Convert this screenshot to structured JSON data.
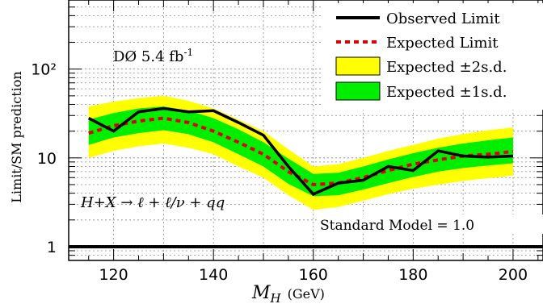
{
  "chart_data": {
    "type": "line",
    "title": "",
    "xlabel": "M_H (GeV)",
    "ylabel": "Limit/SM prediction",
    "xlim": [
      111,
      206
    ],
    "ylim": [
      0.7,
      600
    ],
    "yscale": "log",
    "grid": true,
    "legend_position": "top-right",
    "x": [
      115,
      120,
      125,
      130,
      135,
      140,
      145,
      150,
      155,
      160,
      165,
      170,
      175,
      180,
      185,
      190,
      195,
      200
    ],
    "series": [
      {
        "name": "Observed Limit",
        "style": "solid",
        "color": "#000000",
        "values": [
          28,
          20,
          33,
          36,
          33,
          34,
          25,
          18,
          8,
          3.9,
          5.2,
          5.6,
          8.0,
          7.2,
          12.0,
          10.5,
          10.2,
          10.5
        ]
      },
      {
        "name": "Expected Limit",
        "style": "dashed",
        "color": "#dd0000",
        "values": [
          19,
          23,
          26,
          28,
          25,
          20,
          15,
          11,
          7,
          5.0,
          5.2,
          6.0,
          7.2,
          8.5,
          9.5,
          10.5,
          11.0,
          11.8
        ]
      }
    ],
    "bands": [
      {
        "name": "Expected ±2s.d.",
        "color": "#ffff00",
        "upper": [
          38,
          43,
          47,
          50,
          44,
          36,
          27,
          20,
          12.5,
          8.0,
          8.5,
          10.0,
          12.0,
          14.0,
          16.5,
          18.5,
          20.5,
          22.0
        ],
        "lower": [
          10,
          12,
          13.5,
          14.5,
          13,
          11,
          8,
          6,
          3.8,
          2.6,
          2.8,
          3.3,
          3.9,
          4.5,
          5.0,
          5.5,
          5.9,
          6.3
        ]
      },
      {
        "name": "Expected ±1s.d.",
        "color": "#00ee00",
        "upper": [
          27,
          32,
          36,
          38,
          34,
          28,
          21,
          15,
          9.8,
          6.6,
          6.8,
          8.0,
          9.6,
          11.3,
          13.0,
          14.5,
          15.8,
          17.0
        ],
        "lower": [
          14,
          17,
          19,
          20.5,
          18.5,
          15,
          11,
          8,
          5.1,
          3.7,
          3.8,
          4.4,
          5.2,
          6.1,
          7.0,
          7.7,
          8.2,
          8.7
        ]
      }
    ],
    "reference_line": {
      "label": "Standard Model = 1.0",
      "value": 1.0
    },
    "x_ticks": [
      120,
      140,
      160,
      180,
      200
    ],
    "y_ticks": [
      1,
      10,
      100
    ],
    "y_tick_labels": [
      "1",
      "10",
      "10²"
    ],
    "annotations": {
      "experiment": "DØ 5.4 fb",
      "experiment_sup": "-1",
      "process": "H+X → ℓ + ℓ/ν + qq"
    }
  },
  "legend": [
    {
      "label": "Observed Limit",
      "kind": "line"
    },
    {
      "label": "Expected Limit",
      "kind": "dashed"
    },
    {
      "label": "Expected ±2s.d.",
      "kind": "band-yellow"
    },
    {
      "label": "Expected ±1s.d.",
      "kind": "band-green"
    }
  ],
  "labels": {
    "xlabel_main": "M",
    "xlabel_sub": "H",
    "xlabel_unit": "(GeV)",
    "ylabel": "Limit/SM prediction"
  }
}
